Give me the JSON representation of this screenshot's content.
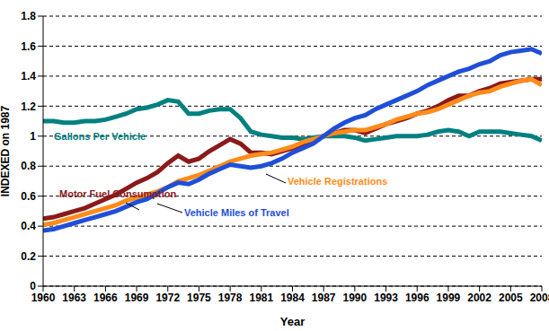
{
  "chart_data": {
    "type": "line",
    "x_label": "Year",
    "y_label": "INDEXED on 1987",
    "x": [
      1960,
      1961,
      1962,
      1963,
      1964,
      1965,
      1966,
      1967,
      1968,
      1969,
      1970,
      1971,
      1972,
      1973,
      1974,
      1975,
      1976,
      1977,
      1978,
      1979,
      1980,
      1981,
      1982,
      1983,
      1984,
      1985,
      1986,
      1987,
      1988,
      1989,
      1990,
      1991,
      1992,
      1993,
      1994,
      1995,
      1996,
      1997,
      1998,
      1999,
      2000,
      2001,
      2002,
      2003,
      2004,
      2005,
      2006,
      2007,
      2008
    ],
    "xlim": [
      1960,
      2008
    ],
    "xticks": [
      1960,
      1963,
      1966,
      1969,
      1972,
      1975,
      1978,
      1981,
      1984,
      1987,
      1990,
      1993,
      1996,
      1999,
      2002,
      2005,
      2008
    ],
    "ylim": [
      0,
      1.8
    ],
    "yticks": [
      0,
      0.2,
      0.4,
      0.6,
      0.8,
      1,
      1.2,
      1.4,
      1.6,
      1.8
    ],
    "grid": true,
    "series": [
      {
        "name": "Gallons Per Vehicle",
        "color": "#008080",
        "values": [
          1.1,
          1.1,
          1.09,
          1.09,
          1.1,
          1.1,
          1.11,
          1.13,
          1.15,
          1.18,
          1.19,
          1.21,
          1.24,
          1.23,
          1.15,
          1.15,
          1.17,
          1.18,
          1.18,
          1.12,
          1.03,
          1.01,
          1.0,
          0.99,
          0.99,
          0.98,
          0.99,
          1.0,
          1.0,
          1.0,
          0.99,
          0.97,
          0.98,
          0.99,
          1.0,
          1.0,
          1.0,
          1.01,
          1.03,
          1.04,
          1.03,
          1.0,
          1.03,
          1.03,
          1.03,
          1.02,
          1.01,
          1.0,
          0.97
        ]
      },
      {
        "name": "Motor Fuel Consumption",
        "color": "#8b1a1a",
        "values": [
          0.45,
          0.46,
          0.48,
          0.5,
          0.52,
          0.55,
          0.58,
          0.61,
          0.65,
          0.69,
          0.72,
          0.76,
          0.82,
          0.87,
          0.83,
          0.85,
          0.9,
          0.94,
          0.98,
          0.95,
          0.89,
          0.89,
          0.88,
          0.9,
          0.92,
          0.94,
          0.97,
          1.0,
          1.02,
          1.04,
          1.04,
          1.02,
          1.05,
          1.08,
          1.1,
          1.12,
          1.15,
          1.17,
          1.2,
          1.24,
          1.27,
          1.27,
          1.3,
          1.32,
          1.35,
          1.36,
          1.37,
          1.38,
          1.38
        ]
      },
      {
        "name": "Vehicle Registrations",
        "color": "#ff8c1a",
        "values": [
          0.41,
          0.42,
          0.44,
          0.46,
          0.48,
          0.5,
          0.52,
          0.54,
          0.57,
          0.59,
          0.61,
          0.63,
          0.66,
          0.7,
          0.72,
          0.74,
          0.77,
          0.8,
          0.83,
          0.85,
          0.87,
          0.88,
          0.89,
          0.91,
          0.93,
          0.96,
          0.98,
          1.0,
          1.02,
          1.03,
          1.04,
          1.04,
          1.06,
          1.08,
          1.11,
          1.13,
          1.15,
          1.16,
          1.18,
          1.21,
          1.24,
          1.27,
          1.29,
          1.3,
          1.33,
          1.35,
          1.37,
          1.38,
          1.34
        ]
      },
      {
        "name": "Vehicle Miles of Travel",
        "color": "#1f4fd8",
        "values": [
          0.37,
          0.38,
          0.4,
          0.42,
          0.44,
          0.46,
          0.48,
          0.5,
          0.53,
          0.56,
          0.58,
          0.62,
          0.66,
          0.69,
          0.68,
          0.71,
          0.75,
          0.78,
          0.81,
          0.8,
          0.79,
          0.8,
          0.82,
          0.85,
          0.89,
          0.92,
          0.95,
          1.0,
          1.05,
          1.09,
          1.12,
          1.14,
          1.18,
          1.21,
          1.24,
          1.27,
          1.3,
          1.34,
          1.37,
          1.4,
          1.43,
          1.45,
          1.48,
          1.5,
          1.54,
          1.56,
          1.57,
          1.58,
          1.55
        ]
      }
    ]
  }
}
